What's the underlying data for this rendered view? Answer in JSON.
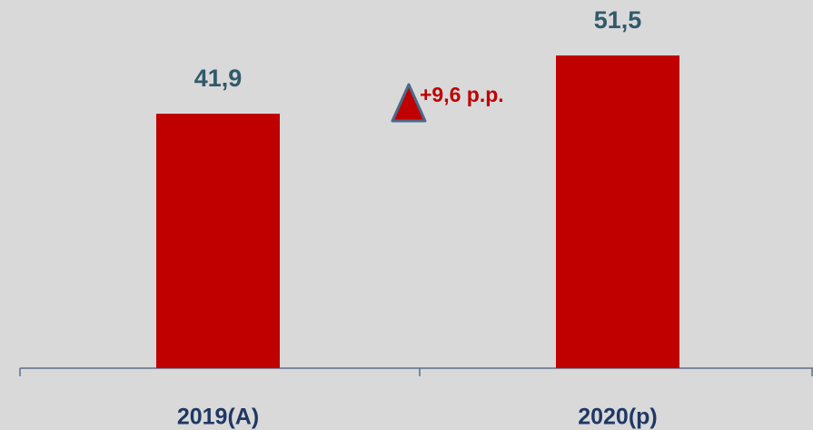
{
  "chart_data": {
    "type": "bar",
    "categories": [
      "2019(A)",
      "2020(p)"
    ],
    "values": [
      41.9,
      51.5
    ],
    "value_labels": [
      "41,9",
      "51,5"
    ],
    "color": "#c00000",
    "annotation": "+9,6 p.p."
  }
}
